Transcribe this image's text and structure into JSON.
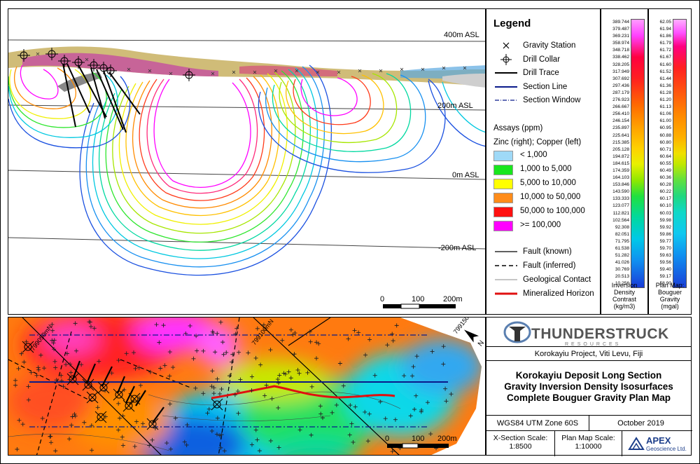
{
  "section": {
    "elevation_labels": [
      "400m ASL",
      "200m ASL",
      "0m ASL",
      "-200m ASL"
    ],
    "scale_labels": [
      "0",
      "100",
      "200m"
    ]
  },
  "legend": {
    "title": "Legend",
    "symbols": [
      {
        "icon": "cross-icon",
        "label": "Gravity Station"
      },
      {
        "icon": "drill-collar-icon",
        "label": "Drill Collar"
      },
      {
        "icon": "drill-trace-line",
        "label": "Drill Trace"
      },
      {
        "icon": "section-line",
        "label": "Section Line"
      },
      {
        "icon": "section-window-line",
        "label": "Section Window"
      }
    ],
    "assays_title": "Assays (ppm)",
    "assays_subtitle": "Zinc (right); Copper (left)",
    "assay_classes": [
      {
        "label": "< 1,000",
        "color": "#9fd9f7"
      },
      {
        "label": "1,000 to 5,000",
        "color": "#19e61d"
      },
      {
        "label": "5,000 to 10,000",
        "color": "#ffff00"
      },
      {
        "label": "10,000 to 50,000",
        "color": "#ff8c1a"
      },
      {
        "label": "50,000 to 100,000",
        "color": "#ff1010"
      },
      {
        "label": ">= 100,000",
        "color": "#ff00ff"
      }
    ],
    "lines": [
      {
        "icon": "fault-known-line",
        "label": "Fault (known)"
      },
      {
        "icon": "fault-inferred-line",
        "label": "Fault (inferred)"
      },
      {
        "icon": "geological-contact-line",
        "label": "Geological Contact"
      },
      {
        "icon": "mineralized-horizon-line",
        "label": "Mineralized Horizon"
      }
    ]
  },
  "density_bar": {
    "ticks": [
      "389.744",
      "379.487",
      "369.231",
      "358.974",
      "348.718",
      "338.462",
      "328.205",
      "317.949",
      "307.692",
      "297.436",
      "287.179",
      "276.923",
      "266.667",
      "256.410",
      "246.154",
      "235.897",
      "225.641",
      "215.385",
      "205.128",
      "194.872",
      "184.615",
      "174.359",
      "164.103",
      "153.846",
      "143.590",
      "133.333",
      "123.077",
      "112.821",
      "102.564",
      "92.308",
      "82.051",
      "71.795",
      "61.538",
      "51.282",
      "41.026",
      "30.769",
      "20.513",
      "10.256"
    ],
    "label_lines": [
      "Inversion",
      "Density",
      "Contrast",
      "(kg/m3)"
    ]
  },
  "gravity_bar": {
    "ticks": [
      "62.05",
      "61.94",
      "61.86",
      "61.79",
      "61.72",
      "61.67",
      "61.60",
      "61.52",
      "61.44",
      "61.36",
      "61.28",
      "61.20",
      "61.13",
      "61.06",
      "61.00",
      "60.95",
      "60.88",
      "60.80",
      "60.71",
      "60.64",
      "60.55",
      "60.49",
      "60.36",
      "60.28",
      "60.22",
      "60.17",
      "60.10",
      "60.03",
      "59.98",
      "59.92",
      "59.86",
      "59.77",
      "59.70",
      "59.63",
      "59.56",
      "59.40",
      "59.17",
      "58.90"
    ],
    "label_lines": [
      "Plan Map:",
      "Bouguer",
      "Gravity",
      "(mgal)"
    ]
  },
  "plan": {
    "grid_labels": [
      "799050mN",
      "799100mN",
      "799150mN"
    ],
    "north_label": "N",
    "scale_labels": [
      "0",
      "100",
      "200m"
    ]
  },
  "title_block": {
    "company_main": "THUNDERSTRUCK",
    "company_sub": "RESOURCES",
    "project": "Korokayiu Project, Viti Levu, Fiji",
    "title_lines": [
      "Korokayiu Deposit Long Section",
      "Gravity Inversion Density Isosurfaces",
      "Complete Bouguer Gravity Plan Map"
    ],
    "datum": "WGS84 UTM Zone 60S",
    "date": "October 2019",
    "xsection_scale_label": "X-Section Scale:",
    "xsection_scale": "1:8500",
    "plan_scale_label": "Plan Map Scale:",
    "plan_scale": "1:10000",
    "consultant_main": "APEX",
    "consultant_sub": "Geoscience Ltd."
  }
}
